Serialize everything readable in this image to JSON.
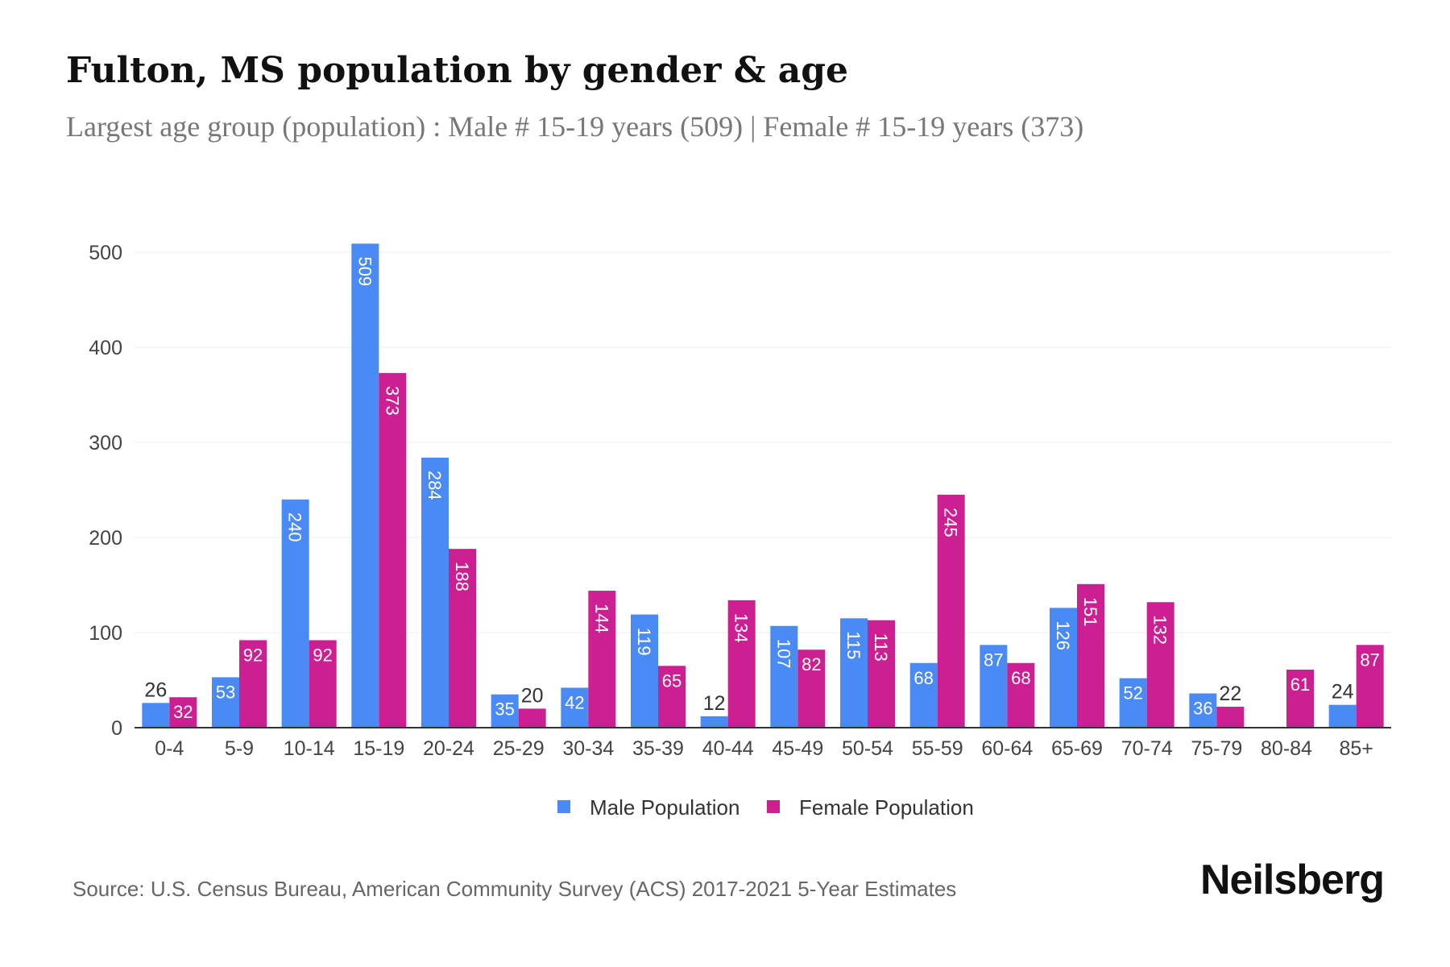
{
  "title": "Fulton, MS population by gender & age",
  "subtitle": "Largest age group (population) : Male # 15-19 years (509) | Female # 15-19 years (373)",
  "source": "Source: U.S. Census Bureau, American Community Survey (ACS) 2017-2021 5-Year Estimates",
  "logo": "Neilsberg",
  "chart_data": {
    "type": "bar",
    "categories": [
      "0-4",
      "5-9",
      "10-14",
      "15-19",
      "20-24",
      "25-29",
      "30-34",
      "35-39",
      "40-44",
      "45-49",
      "50-54",
      "55-59",
      "60-64",
      "65-69",
      "70-74",
      "75-79",
      "80-84",
      "85+"
    ],
    "series": [
      {
        "name": "Male Population",
        "color": "#4a8af4",
        "values": [
          26,
          53,
          240,
          509,
          284,
          35,
          42,
          119,
          12,
          107,
          115,
          68,
          87,
          126,
          52,
          36,
          0,
          24
        ]
      },
      {
        "name": "Female Population",
        "color": "#cc1f92",
        "values": [
          32,
          92,
          92,
          373,
          188,
          20,
          144,
          65,
          134,
          82,
          113,
          245,
          68,
          151,
          132,
          22,
          61,
          87
        ]
      }
    ],
    "yticks": [
      0,
      100,
      200,
      300,
      400,
      500
    ],
    "ylim": [
      0,
      500
    ],
    "grid": true,
    "legend": "bottom"
  }
}
